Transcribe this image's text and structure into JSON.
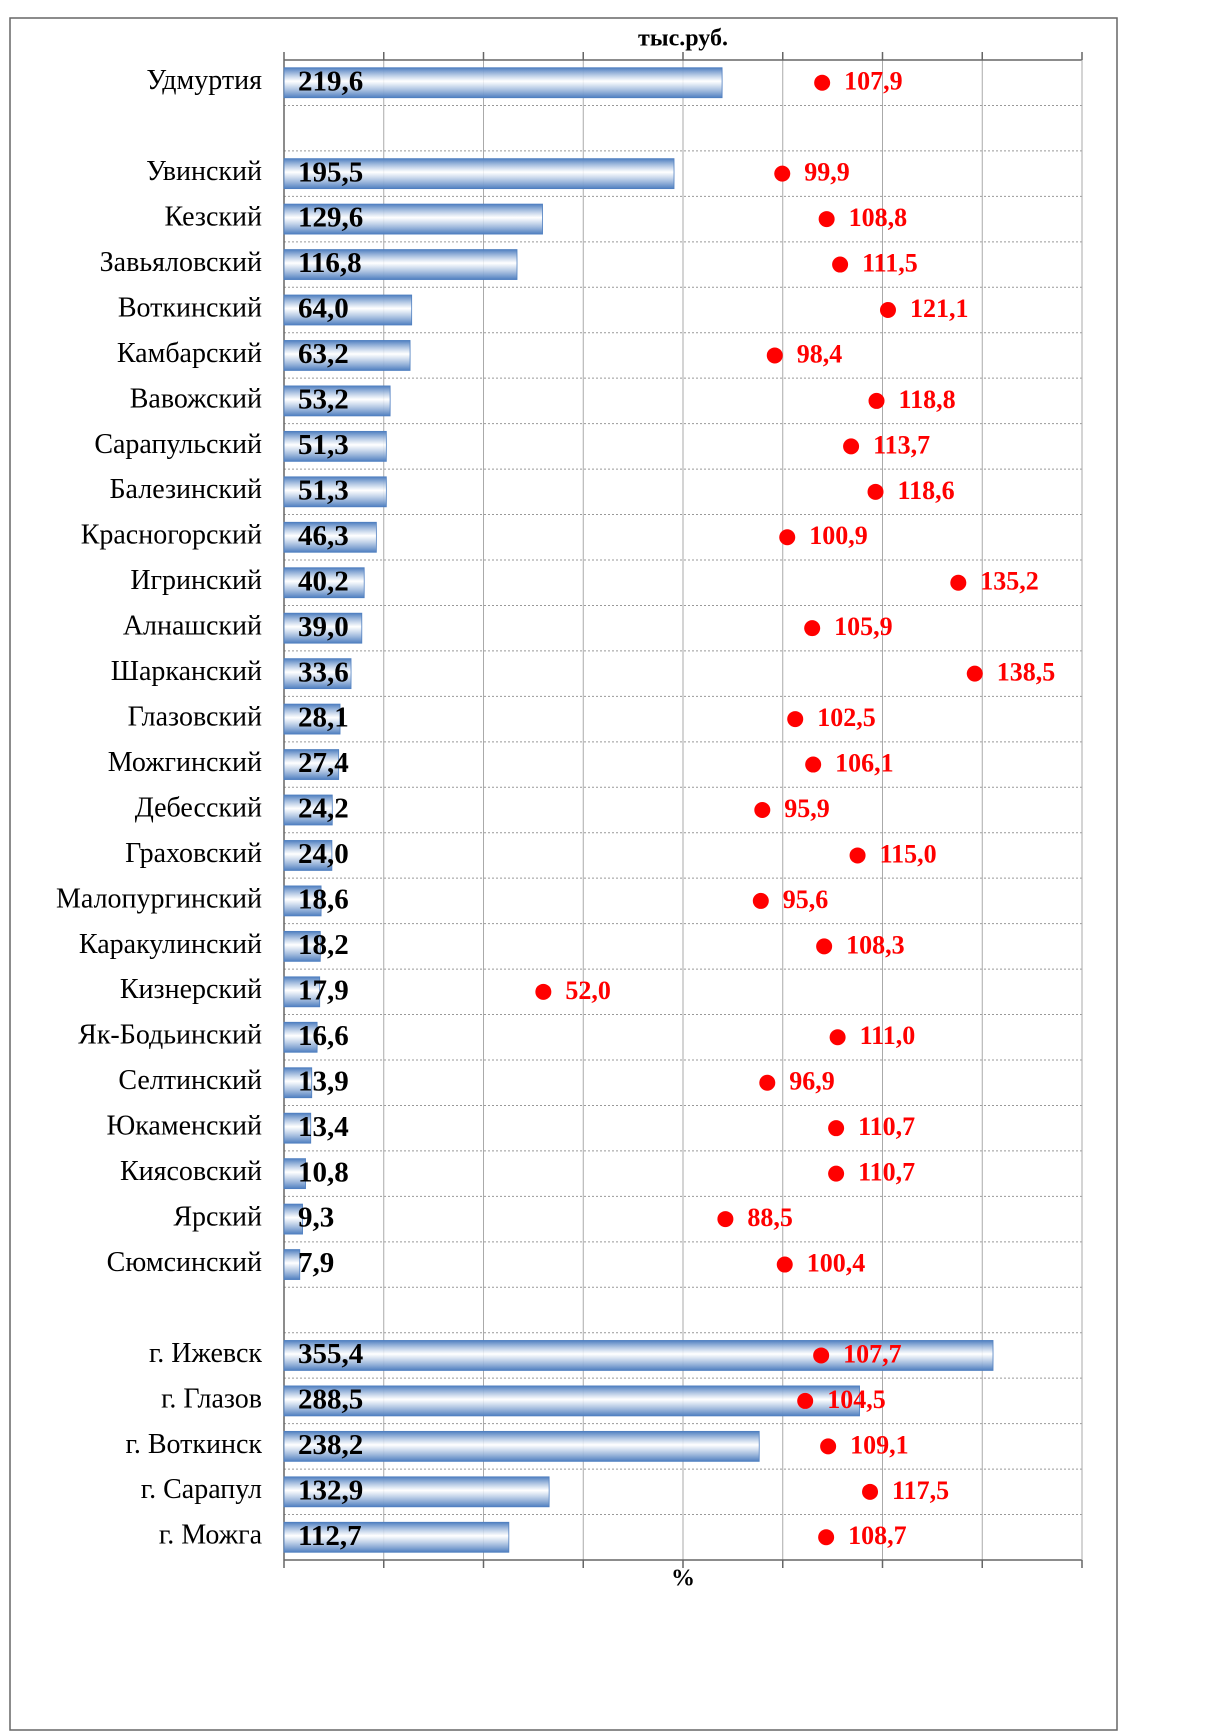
{
  "chart_data": {
    "type": "bar-dot",
    "xlabel": "тыс.руб.",
    "x2label": "%",
    "xlim": [
      0,
      400
    ],
    "xticks": [
      0,
      50,
      100,
      150,
      200,
      250,
      300,
      350,
      400
    ],
    "x2lim": [
      0,
      160
    ],
    "x2ticks": [
      0,
      20,
      40,
      60,
      80,
      100,
      120,
      140,
      160
    ],
    "grid": true,
    "categories": [
      "Удмуртия",
      null,
      "Увинский",
      "Кезский",
      "Завьяловский",
      "Воткинский",
      "Камбарский",
      "Вавожский",
      "Сарапульский",
      "Балезинский",
      "Красногорский",
      "Игринский",
      "Алнашский",
      "Шарканский",
      "Глазовский",
      "Можгинский",
      "Дебесский",
      "Граховский",
      "Малопургинский",
      "Каракулинский",
      "Кизнерский",
      "Як-Бодьинский",
      "Селтинский",
      "Юкаменский",
      "Киясовский",
      "Ярский",
      "Сюмсинский",
      null,
      "г. Ижевск",
      "г. Глазов",
      "г. Воткинск",
      "г. Сарапул",
      "г. Можга"
    ],
    "series": [
      {
        "type": "bar",
        "color": "#4f7fc0",
        "values": [
          219.6,
          null,
          195.5,
          129.6,
          116.8,
          64.0,
          63.2,
          53.2,
          51.3,
          51.3,
          46.3,
          40.2,
          39.0,
          33.6,
          28.1,
          27.4,
          24.2,
          24.0,
          18.6,
          18.2,
          17.9,
          16.6,
          13.9,
          13.4,
          10.8,
          9.3,
          7.9,
          null,
          355.4,
          288.5,
          238.2,
          132.9,
          112.7
        ],
        "value_labels": [
          "219,6",
          null,
          "195,5",
          "129,6",
          "116,8",
          "64,0",
          "63,2",
          "53,2",
          "51,3",
          "51,3",
          "46,3",
          "40,2",
          "39,0",
          "33,6",
          "28,1",
          "27,4",
          "24,2",
          "24,0",
          "18,6",
          "18,2",
          "17,9",
          "16,6",
          "13,9",
          "13,4",
          "10,8",
          "9,3",
          "7,9",
          null,
          "355,4",
          "288,5",
          "238,2",
          "132,9",
          "112,7"
        ]
      },
      {
        "type": "dot",
        "color": "#ff0000",
        "axis": "x2",
        "values": [
          107.9,
          null,
          99.9,
          108.8,
          111.5,
          121.1,
          98.4,
          118.8,
          113.7,
          118.6,
          100.9,
          135.2,
          105.9,
          138.5,
          102.5,
          106.1,
          95.9,
          115.0,
          95.6,
          108.3,
          52.0,
          111.0,
          96.9,
          110.7,
          110.7,
          88.5,
          100.4,
          null,
          107.7,
          104.5,
          109.1,
          117.5,
          108.7
        ],
        "value_labels": [
          "107,9",
          null,
          "99,9",
          "108,8",
          "111,5",
          "121,1",
          "98,4",
          "118,8",
          "113,7",
          "118,6",
          "100,9",
          "135,2",
          "105,9",
          "138,5",
          "102,5",
          "106,1",
          "95,9",
          "115,0",
          "95,6",
          "108,3",
          "52,0",
          "111,0",
          "96,9",
          "110,7",
          "110,7",
          "88,5",
          "100,4",
          null,
          "107,7",
          "104,5",
          "109,1",
          "117,5",
          "108,7"
        ]
      }
    ]
  }
}
